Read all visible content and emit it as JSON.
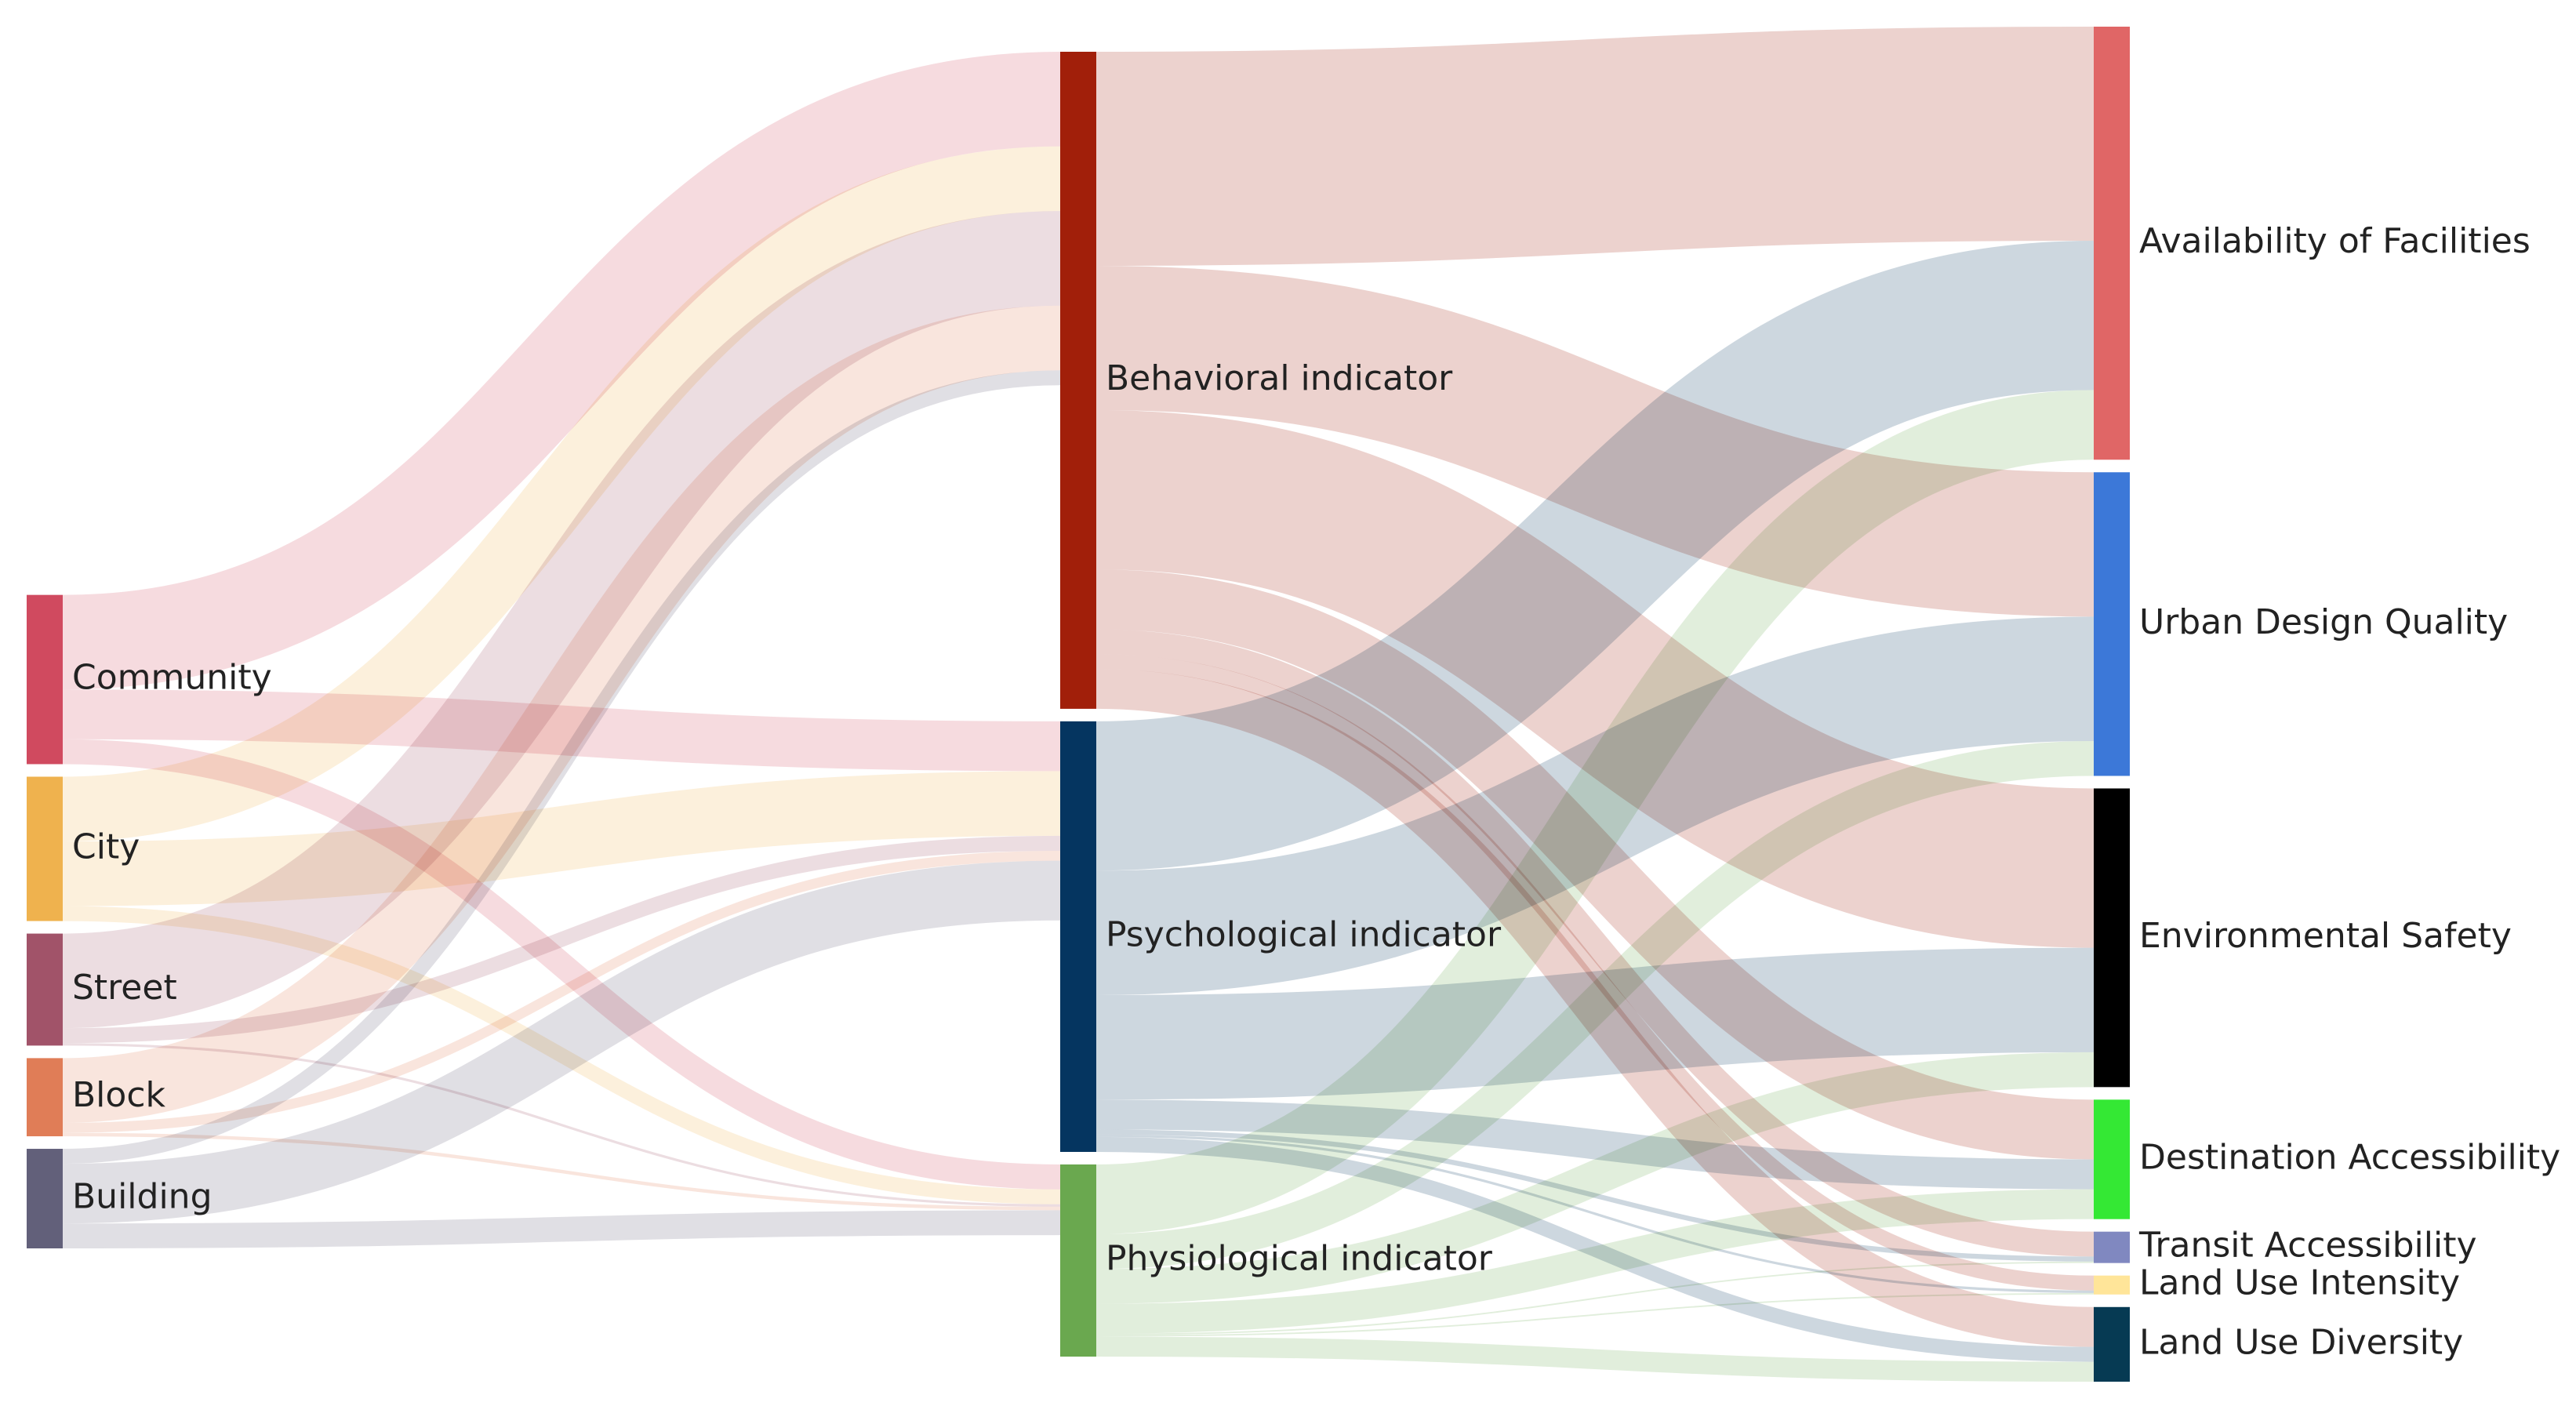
{
  "chart_data": {
    "type": "sankey",
    "nodes": [
      {
        "id": "community",
        "label": "Community",
        "color": "#D04A5F"
      },
      {
        "id": "city",
        "label": "City",
        "color": "#EFB24E"
      },
      {
        "id": "street",
        "label": "Street",
        "color": "#A15369"
      },
      {
        "id": "block",
        "label": "Block",
        "color": "#E07D57"
      },
      {
        "id": "building",
        "label": "Building",
        "color": "#62607A"
      },
      {
        "id": "behavioral",
        "label": "Behavioral indicator",
        "color": "#A11F0A"
      },
      {
        "id": "psychological",
        "label": "Psychological indicator",
        "color": "#053560"
      },
      {
        "id": "physiological",
        "label": "Physiological indicator",
        "color": "#6AA84F"
      },
      {
        "id": "facilities",
        "label": "Availability of Facilities",
        "color": "#E06666"
      },
      {
        "id": "design",
        "label": "Urban Design Quality",
        "color": "#3C78D8"
      },
      {
        "id": "safety",
        "label": "Environmental Safety",
        "color": "#000000"
      },
      {
        "id": "destination",
        "label": "Destination Accessibility",
        "color": "#34E834"
      },
      {
        "id": "transit",
        "label": "Transit Accessibility",
        "color": "#8088C0"
      },
      {
        "id": "intensity",
        "label": "Land Use Intensity",
        "color": "#FFE599"
      },
      {
        "id": "diversity",
        "label": "Land Use Diversity",
        "color": "#063A53"
      }
    ],
    "columns": [
      [
        "community",
        "city",
        "street",
        "block",
        "building"
      ],
      [
        "behavioral",
        "psychological",
        "physiological"
      ],
      [
        "facilities",
        "design",
        "safety",
        "destination",
        "transit",
        "intensity",
        "diversity"
      ]
    ],
    "links": [
      {
        "source": "community",
        "target": "behavioral",
        "value": 19
      },
      {
        "source": "community",
        "target": "psychological",
        "value": 10
      },
      {
        "source": "community",
        "target": "physiological",
        "value": 5
      },
      {
        "source": "city",
        "target": "behavioral",
        "value": 13
      },
      {
        "source": "city",
        "target": "psychological",
        "value": 13
      },
      {
        "source": "city",
        "target": "physiological",
        "value": 3
      },
      {
        "source": "street",
        "target": "behavioral",
        "value": 19
      },
      {
        "source": "street",
        "target": "psychological",
        "value": 3
      },
      {
        "source": "street",
        "target": "physiological",
        "value": 0.5
      },
      {
        "source": "block",
        "target": "behavioral",
        "value": 13
      },
      {
        "source": "block",
        "target": "psychological",
        "value": 2
      },
      {
        "source": "block",
        "target": "physiological",
        "value": 0.7
      },
      {
        "source": "building",
        "target": "behavioral",
        "value": 3
      },
      {
        "source": "building",
        "target": "psychological",
        "value": 12
      },
      {
        "source": "building",
        "target": "physiological",
        "value": 5
      },
      {
        "source": "behavioral",
        "target": "facilities",
        "value": 43
      },
      {
        "source": "behavioral",
        "target": "design",
        "value": 29
      },
      {
        "source": "behavioral",
        "target": "safety",
        "value": 32
      },
      {
        "source": "behavioral",
        "target": "destination",
        "value": 12
      },
      {
        "source": "behavioral",
        "target": "transit",
        "value": 5
      },
      {
        "source": "behavioral",
        "target": "intensity",
        "value": 3
      },
      {
        "source": "behavioral",
        "target": "diversity",
        "value": 8
      },
      {
        "source": "psychological",
        "target": "facilities",
        "value": 30
      },
      {
        "source": "psychological",
        "target": "design",
        "value": 25
      },
      {
        "source": "psychological",
        "target": "safety",
        "value": 21
      },
      {
        "source": "psychological",
        "target": "destination",
        "value": 6
      },
      {
        "source": "psychological",
        "target": "transit",
        "value": 1
      },
      {
        "source": "psychological",
        "target": "intensity",
        "value": 0.5
      },
      {
        "source": "psychological",
        "target": "diversity",
        "value": 3
      },
      {
        "source": "physiological",
        "target": "facilities",
        "value": 14
      },
      {
        "source": "physiological",
        "target": "design",
        "value": 7
      },
      {
        "source": "physiological",
        "target": "safety",
        "value": 7
      },
      {
        "source": "physiological",
        "target": "destination",
        "value": 6
      },
      {
        "source": "physiological",
        "target": "transit",
        "value": 0.3
      },
      {
        "source": "physiological",
        "target": "intensity",
        "value": 0.3
      },
      {
        "source": "physiological",
        "target": "diversity",
        "value": 4
      }
    ]
  }
}
